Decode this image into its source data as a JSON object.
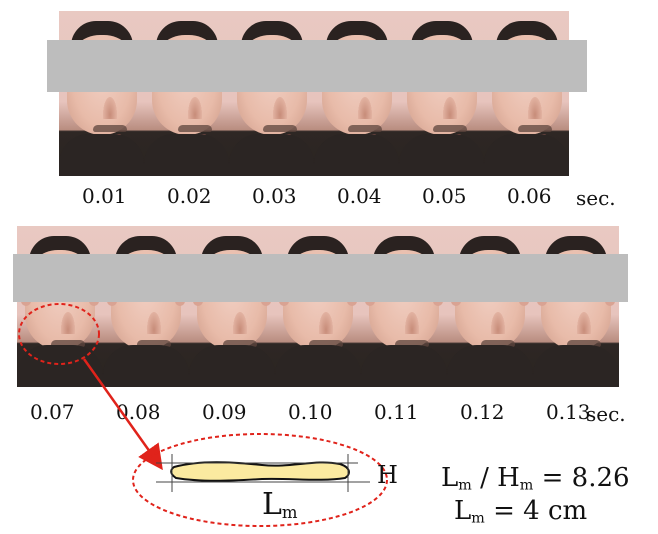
{
  "frames_row1": [
    {
      "time": "0.01",
      "mouth": "closed"
    },
    {
      "time": "0.02",
      "mouth": "closed"
    },
    {
      "time": "0.03",
      "mouth": "closed"
    },
    {
      "time": "0.04",
      "mouth": "closed"
    },
    {
      "time": "0.05",
      "mouth": "closed"
    },
    {
      "time": "0.06",
      "mouth": "closed"
    }
  ],
  "frames_row2": [
    {
      "time": "0.07",
      "mouth": "open"
    },
    {
      "time": "0.08",
      "mouth": "closed"
    },
    {
      "time": "0.09",
      "mouth": "closed"
    },
    {
      "time": "0.10",
      "mouth": "closed"
    },
    {
      "time": "0.11",
      "mouth": "closed"
    },
    {
      "time": "0.12",
      "mouth": "closed"
    },
    {
      "time": "0.13",
      "mouth": "closed"
    }
  ],
  "unit_label": "sec.",
  "highlight_color": "#e0231b",
  "mouth_shape_fill": "#fbeaa0",
  "diagram": {
    "length_label": "L",
    "length_sub": "m",
    "height_label": "H"
  },
  "equations": {
    "ratio_l": "L",
    "ratio_l_sub": "m",
    "ratio_sep": " / H",
    "ratio_h_sub": "m",
    "ratio_value": " = 8.26",
    "length_l": "L",
    "length_l_sub": "m",
    "length_value": " = 4 cm"
  }
}
